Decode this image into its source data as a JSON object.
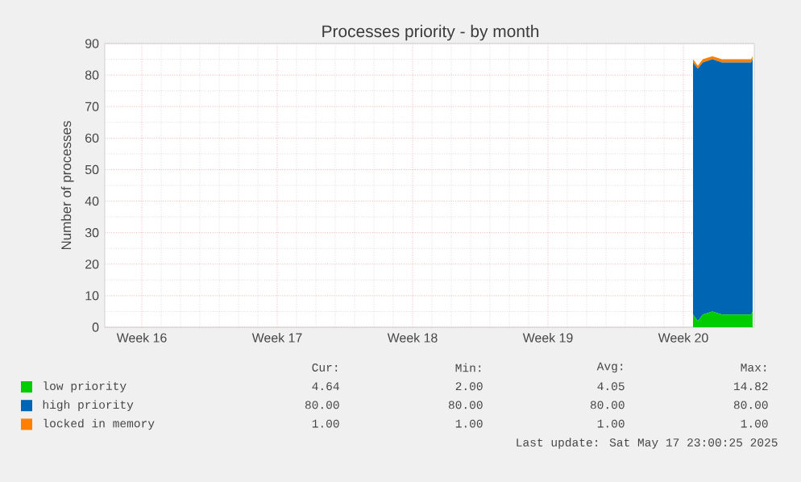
{
  "chart_data": {
    "type": "area",
    "stacked": true,
    "title": "Processes priority - by month",
    "ylabel": "Number of processes",
    "x": [
      "2025-05-16T00:00",
      "2025-05-16T06:00",
      "2025-05-16T12:00",
      "2025-05-17T00:00",
      "2025-05-17T12:00",
      "2025-05-18T00:00",
      "2025-05-18T12:00",
      "2025-05-19T00:00",
      "2025-05-19T02:00"
    ],
    "series": [
      {
        "name": "low priority",
        "color": "#00cc00",
        "values": [
          4,
          2,
          4,
          5,
          4,
          4,
          4,
          4,
          5
        ]
      },
      {
        "name": "high priority",
        "color": "#0066b3",
        "values": [
          80,
          80,
          80,
          80,
          80,
          80,
          80,
          80,
          80
        ]
      },
      {
        "name": "locked in memory",
        "color": "#ff8000",
        "values": [
          1,
          1,
          1,
          1,
          1,
          1,
          1,
          1,
          1
        ]
      }
    ],
    "xlim": [
      "2025-04-15T14:00",
      "2025-05-19T04:00"
    ],
    "xticks": [
      {
        "value": "2025-04-17T12:00",
        "label": "Week 16"
      },
      {
        "value": "2025-04-24T12:00",
        "label": "Week 17"
      },
      {
        "value": "2025-05-01T12:00",
        "label": "Week 18"
      },
      {
        "value": "2025-05-08T12:00",
        "label": "Week 19"
      },
      {
        "value": "2025-05-15T12:00",
        "label": "Week 20"
      }
    ],
    "ylim": [
      0,
      90
    ],
    "yticks": [
      0,
      10,
      20,
      30,
      40,
      50,
      60,
      70,
      80,
      90
    ],
    "grid": true,
    "legend": "bottom left",
    "annotations": [
      "Cur:",
      "Min:",
      "Avg:",
      "Max:",
      "4.64",
      "2.00",
      "4.05",
      "14.82",
      "80.00",
      "80.00",
      "80.00",
      "80.00",
      "1.00",
      "1.00",
      "1.00",
      "1.00",
      "Last update: Sat May 17 23:00:25 2025"
    ]
  }
}
